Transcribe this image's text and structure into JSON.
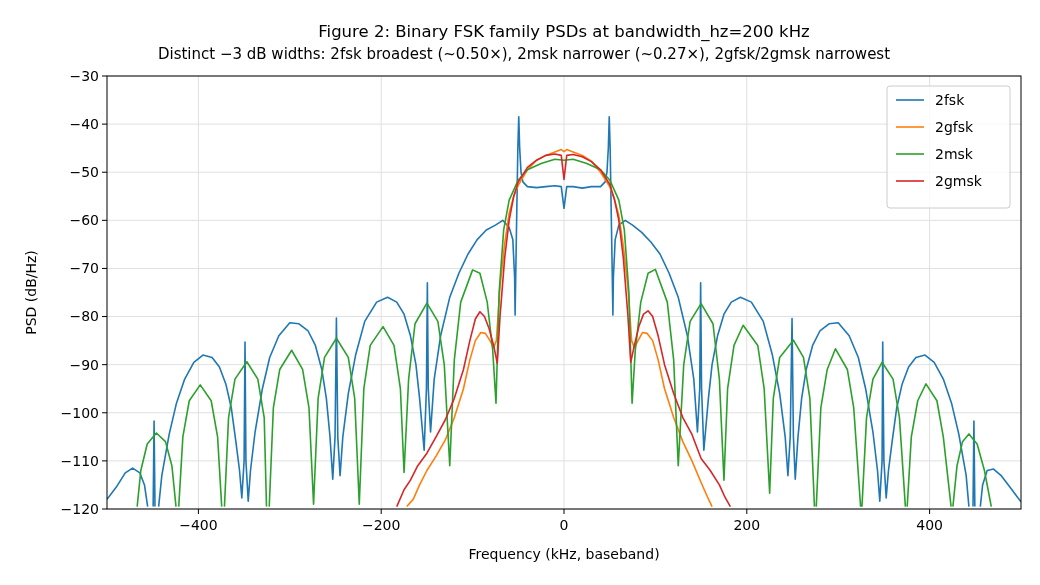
{
  "chart_data": {
    "type": "line",
    "title": "Figure 2: Binary FSK family PSDs at bandwidth_hz=200 kHz",
    "subtitle": "Distinct −3 dB widths: 2fsk broadest (~0.50×), 2msk narrower (~0.27×), 2gfsk/2gmsk narrowest",
    "xlabel": "Frequency (kHz, baseband)",
    "ylabel": "PSD (dB/Hz)",
    "xlim": [
      -500,
      500
    ],
    "ylim": [
      -120,
      -30
    ],
    "xticks": [
      {
        "value": -400,
        "label": "−400"
      },
      {
        "value": -200,
        "label": "−200"
      },
      0,
      200,
      400
    ],
    "yticks": [
      {
        "value": -120,
        "label": "−120"
      },
      {
        "value": -110,
        "label": "−110"
      },
      {
        "value": -100,
        "label": "−100"
      },
      {
        "value": -90,
        "label": "−90"
      },
      {
        "value": -80,
        "label": "−80"
      },
      {
        "value": -70,
        "label": "−70"
      },
      {
        "value": -60,
        "label": "−60"
      },
      {
        "value": -50,
        "label": "−50"
      },
      {
        "value": -40,
        "label": "−40"
      },
      {
        "value": -30,
        "label": "−30"
      }
    ],
    "grid": true,
    "legend": "top right",
    "series": [
      {
        "name": "2fsk",
        "color": "#1f77b4",
        "x": [
          -500,
          -490,
          -480,
          -472,
          -464,
          -459,
          -455.5,
          -454,
          -449.5,
          -448.5,
          -447.5,
          -446,
          -443.5,
          -440,
          -432,
          -424,
          -415,
          -405,
          -395,
          -385,
          -377,
          -370,
          -364,
          -359,
          -355,
          -352.5,
          -350,
          -349,
          -348,
          -345.5,
          -343,
          -338,
          -330,
          -322,
          -312,
          -300,
          -290,
          -280,
          -272,
          -265,
          -260,
          -256,
          -253,
          -250.5,
          -249,
          -247.5,
          -245,
          -242,
          -236,
          -228,
          -218,
          -205,
          -193,
          -183,
          -175,
          -168,
          -162,
          -158,
          -153,
          -150.5,
          -149.5,
          -148.5,
          -146,
          -142,
          -135,
          -125,
          -115,
          -105,
          -95,
          -85,
          -75,
          -67,
          -60,
          -56,
          -54,
          -53.5,
          -52,
          -50.5,
          -49.5,
          -48.5,
          -47,
          -45,
          -40,
          -30,
          -20,
          -10,
          -3,
          0,
          3,
          10,
          20,
          30,
          40,
          45,
          47,
          48.5,
          49.5,
          50.5,
          52,
          53.5,
          54,
          56,
          60,
          67,
          75,
          85,
          95,
          105,
          115,
          125,
          135,
          142,
          146,
          148.5,
          149.5,
          150.5,
          153,
          158,
          162,
          168,
          175,
          183,
          193,
          205,
          218,
          228,
          236,
          242,
          245,
          247.5,
          249.5,
          251,
          253,
          256,
          260,
          265,
          272,
          280,
          290,
          300,
          312,
          322,
          330,
          338,
          343,
          345.5,
          348,
          348.7,
          350,
          352.5,
          355,
          359,
          364,
          370,
          377,
          385,
          395,
          405,
          415,
          424,
          432,
          440,
          443,
          444,
          447.5,
          448.5,
          449.5,
          451,
          455.5,
          458,
          463,
          470,
          478,
          488,
          500
        ],
        "values": [
          -118,
          -115.5,
          -112.5,
          -111.5,
          -112.5,
          -115,
          -119.5,
          null,
          -119.5,
          -101.7,
          -119.5,
          null,
          -119.5,
          -113,
          -104.5,
          -98,
          -93,
          -89.5,
          -88,
          -88.5,
          -90.5,
          -94,
          -99,
          -106,
          -112,
          -117.7,
          -110,
          -85.3,
          -110,
          -118.4,
          -112,
          -104,
          -95,
          -88.5,
          -84,
          -81.3,
          -81.5,
          -83,
          -86,
          -91,
          -97,
          -105,
          -113.8,
          -105,
          -80.3,
          -105,
          -113.1,
          -105,
          -96,
          -88,
          -81,
          -77,
          -76,
          -77,
          -79.5,
          -84,
          -90,
          -97,
          -107.8,
          -95,
          -73,
          -95,
          -104,
          -93,
          -84,
          -76,
          -71,
          -67,
          -64,
          -62,
          -61,
          -60,
          -61.5,
          -64,
          -72,
          -79.7,
          -62,
          -45,
          -38.5,
          -45,
          -50,
          -52,
          -53,
          -53.2,
          -53,
          -52.8,
          -53,
          -57.5,
          -53,
          -53,
          -53.3,
          -53,
          -53,
          -52,
          -50,
          -45,
          -38.5,
          -45,
          -62,
          -79.7,
          -72,
          -64,
          -61,
          -60,
          -61,
          -62.5,
          -64.5,
          -67,
          -71,
          -76,
          -84,
          -93,
          -104,
          -95,
          -73,
          -95,
          -107.8,
          -97,
          -90,
          -84,
          -79.5,
          -77,
          -76,
          -77,
          -81,
          -88,
          -96,
          -105,
          -113.1,
          -105,
          -80.4,
          -105,
          -113.8,
          -105,
          -97,
          -91,
          -86,
          -83,
          -81.5,
          -81.3,
          -84,
          -88.5,
          -95,
          -104,
          -112,
          -118.4,
          -110,
          -85.3,
          -110,
          -117.7,
          -112,
          -106,
          -99,
          -94,
          -90.5,
          -88.5,
          -88,
          -89.5,
          -93,
          -98,
          -104.5,
          -113,
          -119.5,
          null,
          -119.5,
          -101.7,
          -119.5,
          null,
          -119.5,
          -115,
          -112,
          -111.7,
          -113,
          -115.5,
          -118.5
        ]
      },
      {
        "name": "2gfsk",
        "color": "#ff7f0e",
        "x": [
          -172,
          -165,
          -158,
          -150,
          -140,
          -130,
          -120,
          -110,
          -103,
          -97,
          -91,
          -86,
          -81,
          -77,
          -74,
          -70,
          -65,
          -60,
          -55,
          -50,
          -40,
          -30,
          -20,
          -10,
          -3,
          0,
          3,
          10,
          20,
          30,
          40,
          50,
          55,
          60,
          65,
          70,
          74,
          77,
          81,
          86,
          91,
          97,
          103,
          110,
          120,
          130,
          140,
          150,
          157,
          162
        ],
        "values": [
          -119.5,
          -118,
          -115,
          -112,
          -109,
          -105.7,
          -101,
          -95,
          -89,
          -85,
          -83.3,
          -83.5,
          -85,
          -86.5,
          -85,
          -73.8,
          -65,
          -58.5,
          -55,
          -52.7,
          -49.5,
          -47.5,
          -46.5,
          -45.8,
          -45.3,
          -45.7,
          -45.3,
          -45.8,
          -46.5,
          -47.7,
          -50,
          -53,
          -55.5,
          -59,
          -65.5,
          -74,
          -85,
          -86.5,
          -85,
          -83.3,
          -83.5,
          -85,
          -89,
          -95,
          -101,
          -106,
          -110,
          -114.5,
          -117.5,
          -119.5
        ]
      },
      {
        "name": "2msk",
        "color": "#2ca02c",
        "x": [
          -467,
          -463,
          -456,
          -446,
          -436,
          -429,
          -424.5,
          -423,
          -421.5,
          -417,
          -410,
          -398,
          -386,
          -379,
          -374.5,
          -373,
          -371.5,
          -367,
          -360,
          -347,
          -335,
          -328,
          -325.5,
          -324,
          -322.5,
          -318,
          -311,
          -298,
          -286,
          -279,
          -274,
          -269,
          -262,
          -249,
          -236,
          -229,
          -224,
          -219,
          -212,
          -198,
          -186,
          -179,
          -175,
          -170,
          -163,
          -150,
          -138,
          -131,
          -125,
          -120,
          -113,
          -100,
          -92,
          -84,
          -78,
          -74.4,
          -71,
          -66,
          -60,
          -50,
          -40,
          -25,
          -10,
          0,
          10,
          25,
          40,
          50,
          60,
          66,
          71,
          74.5,
          78,
          84,
          92,
          100,
          113,
          120,
          125,
          131,
          138,
          150,
          163,
          170,
          175,
          179,
          186,
          196,
          212,
          219,
          225,
          229,
          236,
          251,
          262,
          269,
          274,
          275,
          276,
          281,
          288,
          297,
          310,
          317,
          324.5,
          325.5,
          326,
          331,
          338,
          348,
          360,
          367,
          373.5,
          374.5,
          375.5,
          380,
          387,
          396,
          408,
          415,
          423.5,
          424.5,
          425.5,
          430,
          436,
          443,
          452,
          460,
          467.5
        ],
        "values": [
          -119.5,
          -112,
          -106.5,
          -104.2,
          -106,
          -111,
          -119.5,
          null,
          -119.5,
          -105,
          -97.5,
          -94.2,
          -97.5,
          -105,
          -119.5,
          null,
          -119.5,
          -101,
          -93,
          -89.4,
          -93,
          -101,
          -119.5,
          null,
          -119.5,
          -99,
          -91,
          -87,
          -91,
          -99,
          -119,
          -97,
          -88.5,
          -84.5,
          -88.5,
          -97,
          -119,
          -95,
          -86,
          -82.1,
          -86,
          -95,
          -112.4,
          -93,
          -81.5,
          -77.2,
          -81,
          -90,
          -111,
          -89,
          -77,
          -70.3,
          -71,
          -77,
          -87,
          -98,
          -75,
          -62,
          -55.8,
          -51.6,
          -49.5,
          -48.2,
          -47.3,
          -47.5,
          -47.3,
          -48.2,
          -49.5,
          -51.6,
          -55.8,
          -62,
          -75,
          -98,
          -87,
          -77,
          -71,
          -70.2,
          -77,
          -89,
          -111,
          -90,
          -81,
          -77.3,
          -81.5,
          -93,
          -114,
          -95,
          -86,
          -81.8,
          -86,
          -95,
          -116.7,
          -97,
          -88.5,
          -84.9,
          -88.5,
          -97,
          -119.5,
          null,
          -119.5,
          -99,
          -91,
          -86.7,
          -91,
          -99,
          -119.5,
          null,
          -119.5,
          -101,
          -93,
          -89.5,
          -93,
          -101,
          -119.5,
          null,
          -119.5,
          -105,
          -97.5,
          -94,
          -97.5,
          -105,
          -119.5,
          null,
          -119.5,
          -111,
          -106,
          -104.4,
          -106.5,
          -112,
          -119.5
        ]
      },
      {
        "name": "2gmsk",
        "color": "#d62728",
        "x": [
          -183,
          -175,
          -168,
          -160,
          -150,
          -140,
          -130,
          -120,
          -110,
          -103,
          -97,
          -92,
          -87,
          -82,
          -77,
          -73,
          -70,
          -65,
          -60,
          -55,
          -50,
          -40,
          -30,
          -20,
          -10,
          -3,
          0,
          3,
          10,
          20,
          30,
          40,
          50,
          55,
          60,
          65,
          70,
          73,
          77,
          82,
          87,
          92,
          97,
          103,
          110,
          120,
          130,
          140,
          150,
          160,
          170,
          176,
          182
        ],
        "values": [
          -119.5,
          -116,
          -114,
          -111,
          -108.4,
          -105,
          -101.5,
          -97,
          -91,
          -85,
          -80.5,
          -79,
          -80,
          -82.5,
          -86,
          -89.7,
          -80,
          -68,
          -60,
          -55,
          -52,
          -49,
          -47.5,
          -46.5,
          -46.2,
          -46.5,
          -51.5,
          -46.5,
          -46.3,
          -46.8,
          -47.8,
          -49.5,
          -52.5,
          -55.5,
          -60,
          -68,
          -80,
          -89.5,
          -86,
          -82,
          -79.5,
          -78.8,
          -80,
          -84,
          -90,
          -96,
          -101,
          -104.5,
          -109.5,
          -112,
          -115,
          -117.5,
          -119.5
        ]
      }
    ]
  }
}
